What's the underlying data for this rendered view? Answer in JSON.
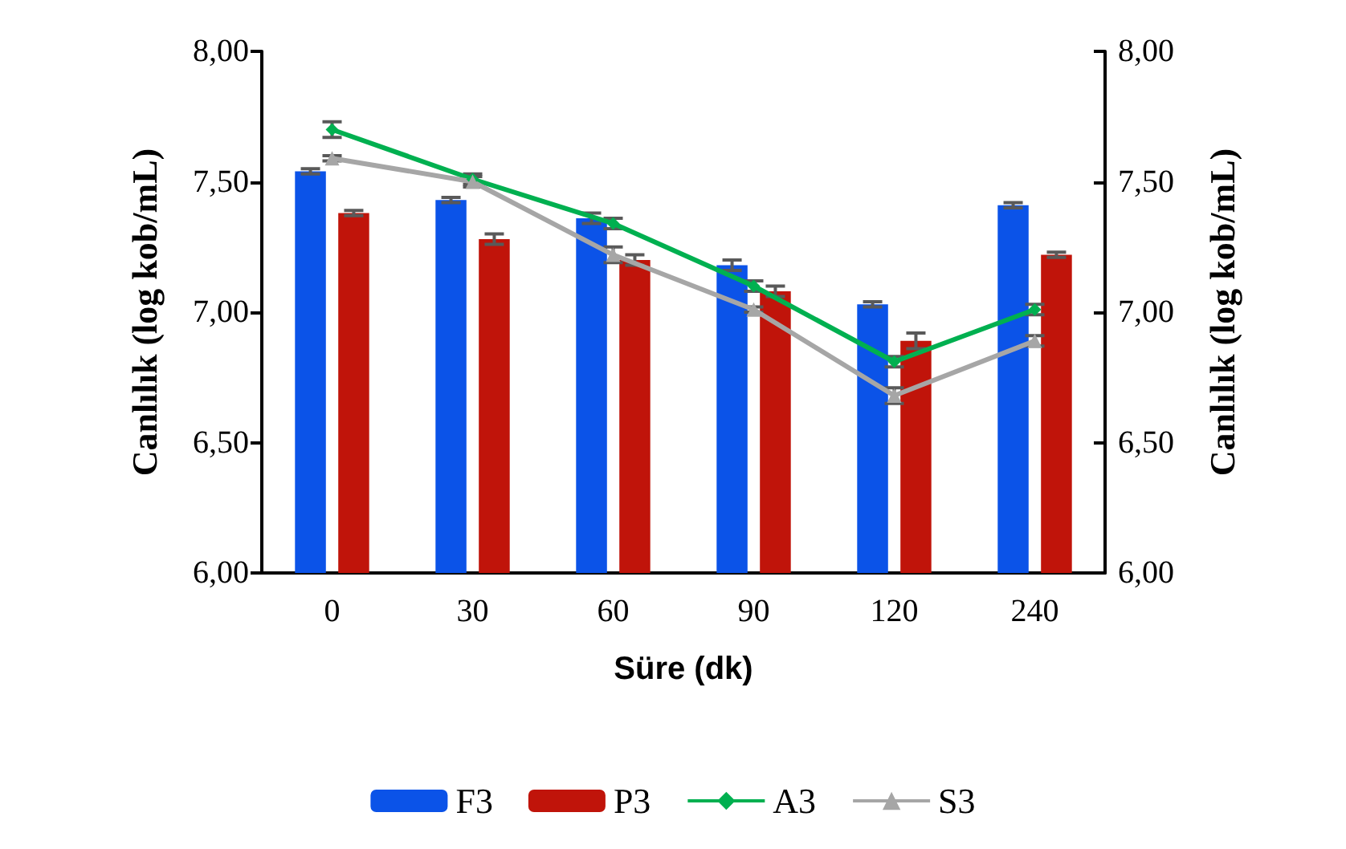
{
  "chart_data": {
    "type": "bar",
    "xlabel": "Süre (dk)",
    "ylabel": "Canlılık (log kob/mL)",
    "y2label": "Canlılık (log kob/mL)",
    "categories": [
      "0",
      "30",
      "60",
      "90",
      "120",
      "240"
    ],
    "series": [
      {
        "name": "F3",
        "color": "#0b53e8",
        "values": [
          7.54,
          7.43,
          7.36,
          7.18,
          7.03,
          7.41
        ],
        "errors": [
          0.01,
          0.01,
          0.02,
          0.02,
          0.01,
          0.01
        ]
      },
      {
        "name": "P3",
        "color": "#c0140a",
        "values": [
          7.38,
          7.28,
          7.2,
          7.08,
          6.89,
          7.22
        ],
        "errors": [
          0.01,
          0.02,
          0.02,
          0.02,
          0.03,
          0.01
        ]
      },
      {
        "name": "A3",
        "type": "line",
        "marker": "diamond",
        "color": "#00b050",
        "values": [
          7.7,
          7.51,
          7.34,
          7.1,
          6.81,
          7.01
        ],
        "errors": [
          0.03,
          0.02,
          0.02,
          0.02,
          0.02,
          0.02
        ]
      },
      {
        "name": "S3",
        "type": "line",
        "marker": "triangle",
        "color": "#a6a6a6",
        "values": [
          7.59,
          7.5,
          7.22,
          7.01,
          6.68,
          6.89
        ],
        "errors": [
          0.01,
          0.02,
          0.03,
          0.01,
          0.03,
          0.02
        ]
      }
    ],
    "ylim": [
      6,
      8
    ],
    "yticks": [
      {
        "value": 6,
        "label": "6,00"
      },
      {
        "value": 6.5,
        "label": "6,50"
      },
      {
        "value": 7,
        "label": "7,00"
      },
      {
        "value": 7.5,
        "label": "7,50"
      },
      {
        "value": 8,
        "label": "8,00"
      }
    ],
    "y2lim": [
      6,
      8
    ],
    "y2ticks": [
      {
        "value": 6,
        "label": "6,00"
      },
      {
        "value": 6.5,
        "label": "6,50"
      },
      {
        "value": 7,
        "label": "7,00"
      },
      {
        "value": 7.5,
        "label": "7,50"
      },
      {
        "value": 8,
        "label": "8,00"
      }
    ],
    "grid": false,
    "legend": "bottom"
  }
}
